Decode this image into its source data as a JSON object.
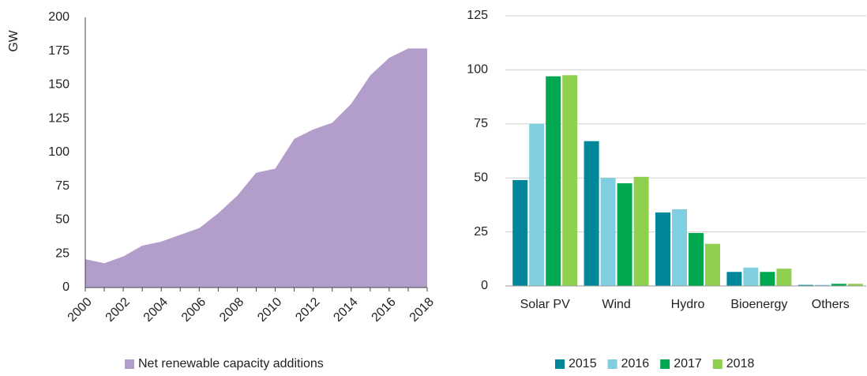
{
  "chart_data": [
    {
      "type": "area",
      "ylabel": "GW",
      "x": [
        2000,
        2001,
        2002,
        2003,
        2004,
        2005,
        2006,
        2007,
        2008,
        2009,
        2010,
        2011,
        2012,
        2013,
        2014,
        2015,
        2016,
        2017,
        2018
      ],
      "series": [
        {
          "name": "Net renewable capacity additions",
          "color": "#b39dcb",
          "values": [
            21,
            18,
            23,
            31,
            34,
            39,
            44,
            55,
            68,
            85,
            88,
            110,
            117,
            122,
            136,
            157,
            170,
            177,
            177
          ]
        }
      ],
      "xlim": [
        2000,
        2018
      ],
      "xticks": [
        2000,
        2002,
        2004,
        2006,
        2008,
        2010,
        2012,
        2014,
        2016,
        2018
      ],
      "ylim": [
        0,
        200
      ],
      "yticks": [
        0,
        25,
        50,
        75,
        100,
        125,
        150,
        175,
        200
      ],
      "grid": false
    },
    {
      "type": "bar",
      "categories": [
        "Solar PV",
        "Wind",
        "Hydro",
        "Bioenergy",
        "Others"
      ],
      "series": [
        {
          "name": "2015",
          "color": "#00889a",
          "values": [
            49,
            67,
            34,
            6.5,
            0.5
          ]
        },
        {
          "name": "2016",
          "color": "#7fcfe0",
          "values": [
            75,
            50,
            35.5,
            8.5,
            0.5
          ]
        },
        {
          "name": "2017",
          "color": "#00a84f",
          "values": [
            97,
            47.5,
            24.5,
            6.5,
            1
          ]
        },
        {
          "name": "2018",
          "color": "#8fd14f",
          "values": [
            97.5,
            50.5,
            19.5,
            8,
            1
          ]
        }
      ],
      "ylim": [
        0,
        125
      ],
      "yticks": [
        0,
        25,
        50,
        75,
        100,
        125
      ],
      "grid": true
    }
  ]
}
